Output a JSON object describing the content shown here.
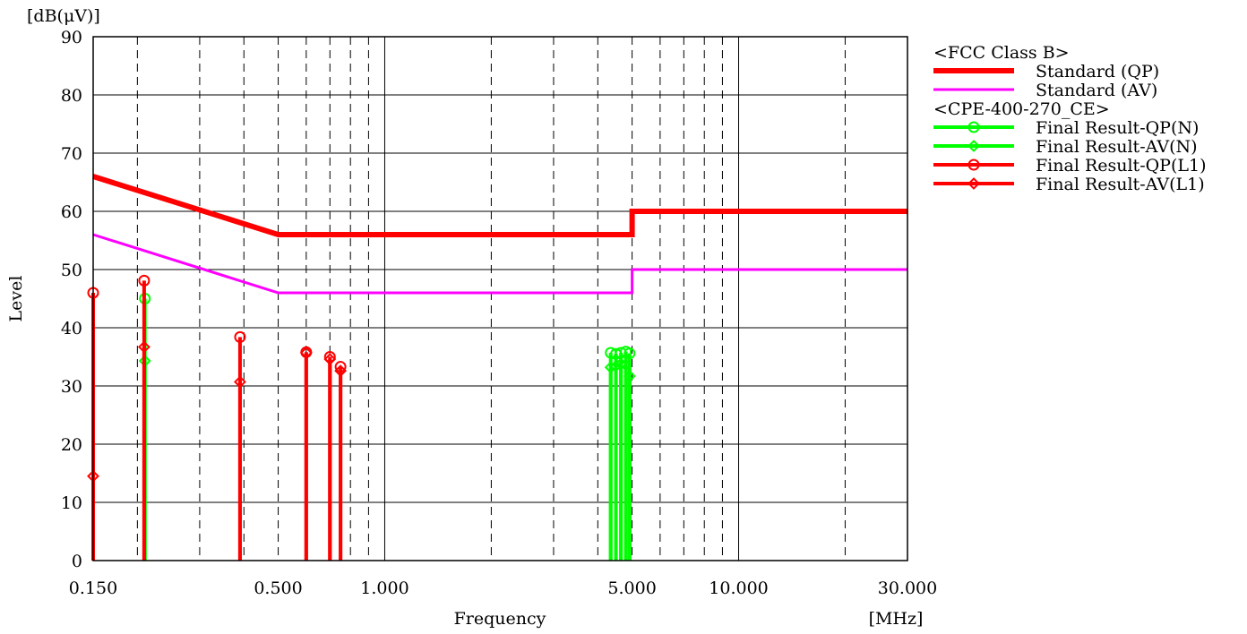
{
  "chart_data": {
    "type": "line",
    "y_unit": "[dB(μV)]",
    "ylabel": "Level",
    "xlabel": "Frequency",
    "x_unit": "[MHz]",
    "x_scale": "log",
    "xlim": [
      0.15,
      30.0
    ],
    "ylim": [
      0,
      90
    ],
    "y_ticks": [
      0,
      10,
      20,
      30,
      40,
      50,
      60,
      70,
      80,
      90
    ],
    "x_tick_labels": [
      {
        "value": 0.15,
        "label": "0.150"
      },
      {
        "value": 0.5,
        "label": "0.500"
      },
      {
        "value": 1.0,
        "label": "1.000"
      },
      {
        "value": 5.0,
        "label": "5.000"
      },
      {
        "value": 10.0,
        "label": "10.000"
      },
      {
        "value": 30.0,
        "label": "30.000"
      }
    ],
    "major_grid_x": [
      1.0,
      10.0
    ],
    "minor_grid_x": [
      0.2,
      0.3,
      0.4,
      0.5,
      0.6,
      0.7,
      0.8,
      0.9,
      2,
      3,
      4,
      5,
      6,
      7,
      8,
      9,
      20
    ],
    "grid": true,
    "legend": {
      "placement": "right",
      "groups": [
        {
          "title": "<FCC Class B>",
          "entries": [
            {
              "series": 0,
              "label": "Standard (QP)"
            },
            {
              "series": 1,
              "label": "Standard (AV)"
            }
          ]
        },
        {
          "title": "<CPE-400-270_CE>",
          "entries": [
            {
              "series": 2,
              "label": "Final Result-QP(N)"
            },
            {
              "series": 3,
              "label": "Final Result-AV(N)"
            },
            {
              "series": 4,
              "label": "Final Result-QP(L1)"
            },
            {
              "series": 5,
              "label": "Final Result-AV(L1)"
            }
          ]
        }
      ]
    },
    "series": [
      {
        "name": "Standard (QP)",
        "kind": "limit",
        "color": "#ff0000",
        "width": 6,
        "points": [
          [
            0.15,
            66
          ],
          [
            0.5,
            56
          ],
          [
            5.0,
            56
          ],
          [
            5.0,
            60
          ],
          [
            30.0,
            60
          ]
        ]
      },
      {
        "name": "Standard (AV)",
        "kind": "limit",
        "color": "#ff00ff",
        "width": 3,
        "points": [
          [
            0.15,
            56
          ],
          [
            0.5,
            46
          ],
          [
            5.0,
            46
          ],
          [
            5.0,
            50
          ],
          [
            30.0,
            50
          ]
        ]
      },
      {
        "name": "Final Result-QP(N)",
        "kind": "stem",
        "marker": "circle",
        "color": "#00ff00",
        "points": [
          [
            0.21,
            45.0
          ],
          [
            4.35,
            35.7
          ],
          [
            4.5,
            35.5
          ],
          [
            4.65,
            35.7
          ],
          [
            4.8,
            35.9
          ],
          [
            4.92,
            35.6
          ]
        ]
      },
      {
        "name": "Final Result-AV(N)",
        "kind": "stem",
        "marker": "diamond",
        "color": "#00ff00",
        "points": [
          [
            0.21,
            34.3
          ],
          [
            4.35,
            33.2
          ],
          [
            4.5,
            33.4
          ],
          [
            4.65,
            33.8
          ],
          [
            4.8,
            33.6
          ],
          [
            4.92,
            31.7
          ]
        ]
      },
      {
        "name": "Final Result-QP(L1)",
        "kind": "stem",
        "marker": "circle",
        "color": "#ff0000",
        "points": [
          [
            0.15,
            46.0
          ],
          [
            0.209,
            48.1
          ],
          [
            0.39,
            38.4
          ],
          [
            0.6,
            35.8
          ],
          [
            0.7,
            35.0
          ],
          [
            0.75,
            33.3
          ]
        ]
      },
      {
        "name": "Final Result-AV(L1)",
        "kind": "stem",
        "marker": "diamond",
        "color": "#ff0000",
        "points": [
          [
            0.15,
            14.5
          ],
          [
            0.209,
            36.7
          ],
          [
            0.39,
            30.7
          ],
          [
            0.6,
            35.7
          ],
          [
            0.7,
            34.6
          ],
          [
            0.75,
            32.6
          ]
        ]
      }
    ]
  }
}
